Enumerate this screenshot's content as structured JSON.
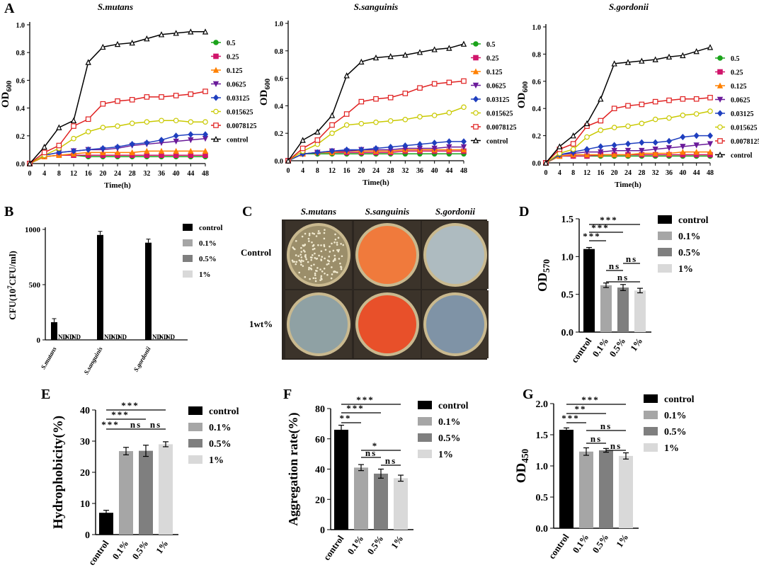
{
  "colors": {
    "control": "#000000",
    "c01": "#a6a6a6",
    "c05": "#7f7f7f",
    "c1": "#d9d9d9"
  },
  "photo_colors": {
    "mutans_control": "#9b8e6a",
    "sang_control": "#f07a3c",
    "gord_control": "#aebbc0",
    "mutans_1wt": "#8fa1a4",
    "sang_1wt": "#e8502a",
    "gord_1wt": "#7f93a6"
  },
  "chart_data": [
    {
      "panel": "A",
      "type": "line",
      "title": "S.mutans",
      "xlabel": "Time(h)",
      "ylabel": "OD",
      "ylabel_sub": "600",
      "x": [
        0,
        4,
        8,
        12,
        16,
        20,
        24,
        28,
        32,
        36,
        40,
        44,
        48
      ],
      "ylim": [
        0,
        1.0
      ],
      "yticks": [
        "0.0",
        "0.2",
        "0.4",
        "0.6",
        "0.8",
        "1.0"
      ],
      "series": [
        {
          "name": "0.5",
          "color": "#1aa31a",
          "marker": "circle",
          "values": [
            0,
            0.05,
            0.06,
            0.06,
            0.05,
            0.05,
            0.05,
            0.05,
            0.05,
            0.05,
            0.05,
            0.05,
            0.05
          ]
        },
        {
          "name": "0.25",
          "color": "#d0156b",
          "marker": "square",
          "values": [
            0,
            0.05,
            0.06,
            0.06,
            0.06,
            0.06,
            0.06,
            0.06,
            0.06,
            0.06,
            0.06,
            0.06,
            0.06
          ]
        },
        {
          "name": "0.125",
          "color": "#ff8000",
          "marker": "triangle",
          "values": [
            0,
            0.05,
            0.06,
            0.07,
            0.08,
            0.08,
            0.08,
            0.08,
            0.09,
            0.09,
            0.09,
            0.09,
            0.09
          ]
        },
        {
          "name": "0.0625",
          "color": "#6a1b9a",
          "marker": "tri-down",
          "values": [
            0,
            0.06,
            0.08,
            0.09,
            0.1,
            0.1,
            0.11,
            0.13,
            0.14,
            0.15,
            0.16,
            0.17,
            0.18
          ]
        },
        {
          "name": "0.03125",
          "color": "#1f3fbf",
          "marker": "diamond",
          "values": [
            0,
            0.06,
            0.08,
            0.09,
            0.1,
            0.11,
            0.12,
            0.14,
            0.15,
            0.17,
            0.2,
            0.21,
            0.21
          ]
        },
        {
          "name": "0.015625",
          "color": "#c9c900",
          "marker": "circle-open",
          "values": [
            0,
            0.06,
            0.11,
            0.18,
            0.23,
            0.26,
            0.27,
            0.29,
            0.3,
            0.31,
            0.31,
            0.3,
            0.3
          ]
        },
        {
          "name": "0.0078125",
          "color": "#e02020",
          "marker": "square-open",
          "values": [
            0,
            0.08,
            0.13,
            0.27,
            0.32,
            0.43,
            0.45,
            0.46,
            0.48,
            0.48,
            0.49,
            0.5,
            0.52
          ]
        },
        {
          "name": "control",
          "color": "#000000",
          "marker": "triangle-open",
          "values": [
            0,
            0.12,
            0.26,
            0.31,
            0.73,
            0.84,
            0.86,
            0.87,
            0.9,
            0.93,
            0.94,
            0.95,
            0.95
          ]
        }
      ]
    },
    {
      "panel": "A",
      "type": "line",
      "title": "S.sanguinis",
      "xlabel": "Time(h)",
      "ylabel": "OD",
      "ylabel_sub": "600",
      "x": [
        0,
        4,
        8,
        12,
        16,
        20,
        24,
        28,
        32,
        36,
        40,
        44,
        48
      ],
      "ylim": [
        0,
        1.0
      ],
      "yticks": [
        "0.0",
        "0.2",
        "0.4",
        "0.6",
        "0.8",
        "1.0"
      ],
      "series": [
        {
          "name": "0.5",
          "color": "#1aa31a",
          "marker": "circle",
          "values": [
            0,
            0.05,
            0.05,
            0.05,
            0.05,
            0.05,
            0.05,
            0.05,
            0.05,
            0.05,
            0.05,
            0.05,
            0.05
          ]
        },
        {
          "name": "0.25",
          "color": "#d0156b",
          "marker": "square",
          "values": [
            0,
            0.05,
            0.06,
            0.06,
            0.06,
            0.06,
            0.06,
            0.06,
            0.07,
            0.07,
            0.07,
            0.07,
            0.07
          ]
        },
        {
          "name": "0.125",
          "color": "#ff8000",
          "marker": "triangle",
          "values": [
            0,
            0.05,
            0.06,
            0.06,
            0.07,
            0.07,
            0.07,
            0.07,
            0.08,
            0.08,
            0.08,
            0.08,
            0.08
          ]
        },
        {
          "name": "0.0625",
          "color": "#6a1b9a",
          "marker": "tri-down",
          "values": [
            0,
            0.05,
            0.06,
            0.07,
            0.07,
            0.08,
            0.08,
            0.08,
            0.09,
            0.09,
            0.09,
            0.1,
            0.1
          ]
        },
        {
          "name": "0.03125",
          "color": "#1f3fbf",
          "marker": "diamond",
          "values": [
            0,
            0.05,
            0.06,
            0.07,
            0.08,
            0.08,
            0.09,
            0.1,
            0.11,
            0.12,
            0.13,
            0.14,
            0.14
          ]
        },
        {
          "name": "0.015625",
          "color": "#c9c900",
          "marker": "circle-open",
          "values": [
            0,
            0.07,
            0.12,
            0.2,
            0.26,
            0.27,
            0.28,
            0.29,
            0.3,
            0.32,
            0.33,
            0.35,
            0.39
          ]
        },
        {
          "name": "0.0078125",
          "color": "#e02020",
          "marker": "square-open",
          "values": [
            0,
            0.09,
            0.15,
            0.26,
            0.34,
            0.43,
            0.45,
            0.46,
            0.49,
            0.53,
            0.56,
            0.57,
            0.58
          ]
        },
        {
          "name": "control",
          "color": "#000000",
          "marker": "triangle-open",
          "values": [
            0,
            0.15,
            0.21,
            0.33,
            0.62,
            0.72,
            0.75,
            0.76,
            0.77,
            0.79,
            0.81,
            0.82,
            0.85
          ]
        }
      ]
    },
    {
      "panel": "A",
      "type": "line",
      "title": "S.gordonii",
      "xlabel": "Time(h)",
      "ylabel": "OD",
      "ylabel_sub": "600",
      "x": [
        0,
        4,
        8,
        12,
        16,
        20,
        24,
        28,
        32,
        36,
        40,
        44,
        48
      ],
      "ylim": [
        0,
        1.0
      ],
      "yticks": [
        "0.0",
        "0.2",
        "0.4",
        "0.6",
        "0.8",
        "1.0"
      ],
      "series": [
        {
          "name": "0.5",
          "color": "#1aa31a",
          "marker": "circle",
          "values": [
            0,
            0.05,
            0.05,
            0.05,
            0.05,
            0.05,
            0.05,
            0.05,
            0.05,
            0.05,
            0.05,
            0.05,
            0.05
          ]
        },
        {
          "name": "0.25",
          "color": "#d0156b",
          "marker": "square",
          "values": [
            0,
            0.05,
            0.05,
            0.05,
            0.06,
            0.06,
            0.06,
            0.06,
            0.06,
            0.06,
            0.06,
            0.06,
            0.06
          ]
        },
        {
          "name": "0.125",
          "color": "#ff8000",
          "marker": "triangle",
          "values": [
            0,
            0.05,
            0.06,
            0.06,
            0.06,
            0.06,
            0.06,
            0.07,
            0.07,
            0.07,
            0.08,
            0.08,
            0.08
          ]
        },
        {
          "name": "0.0625",
          "color": "#6a1b9a",
          "marker": "tri-down",
          "values": [
            0,
            0.06,
            0.07,
            0.08,
            0.08,
            0.09,
            0.09,
            0.09,
            0.1,
            0.11,
            0.12,
            0.13,
            0.14
          ]
        },
        {
          "name": "0.03125",
          "color": "#1f3fbf",
          "marker": "diamond",
          "values": [
            0,
            0.06,
            0.08,
            0.1,
            0.12,
            0.13,
            0.14,
            0.15,
            0.15,
            0.16,
            0.19,
            0.2,
            0.2
          ]
        },
        {
          "name": "0.015625",
          "color": "#c9c900",
          "marker": "circle-open",
          "values": [
            0,
            0.07,
            0.1,
            0.19,
            0.24,
            0.26,
            0.27,
            0.29,
            0.32,
            0.33,
            0.35,
            0.36,
            0.38
          ]
        },
        {
          "name": "0.0078125",
          "color": "#e02020",
          "marker": "square-open",
          "values": [
            0,
            0.1,
            0.14,
            0.27,
            0.31,
            0.4,
            0.42,
            0.43,
            0.45,
            0.46,
            0.47,
            0.47,
            0.48
          ]
        },
        {
          "name": "control",
          "color": "#000000",
          "marker": "triangle-open",
          "values": [
            0,
            0.12,
            0.2,
            0.29,
            0.47,
            0.73,
            0.74,
            0.75,
            0.76,
            0.78,
            0.79,
            0.82,
            0.85
          ]
        }
      ]
    },
    {
      "panel": "B",
      "type": "bar",
      "ylabel_pre": "CFU(10",
      "ylabel_sup": "7",
      "ylabel_post": "CFU/ml)",
      "categories": [
        "S.mutans",
        "S.sanguinis",
        "S.gordonii"
      ],
      "ylim": [
        0,
        1000
      ],
      "yticks": [
        "0",
        "500",
        "1000"
      ],
      "series": [
        {
          "name": "control",
          "values": [
            160,
            950,
            880
          ]
        },
        {
          "name": "0.1%",
          "values": [
            0,
            0,
            0
          ]
        },
        {
          "name": "0.5%",
          "values": [
            0,
            0,
            0
          ]
        },
        {
          "name": "1%",
          "values": [
            0,
            0,
            0
          ]
        }
      ],
      "nd_label": "ND"
    },
    {
      "panel": "D",
      "type": "bar",
      "ylabel": "OD",
      "ylabel_sub": "570",
      "categories": [
        "control",
        "0.1%",
        "0.5%",
        "1%"
      ],
      "values": [
        1.1,
        0.62,
        0.59,
        0.55
      ],
      "errors": [
        0.02,
        0.03,
        0.04,
        0.03
      ],
      "ylim": [
        0,
        1.5
      ],
      "yticks": [
        "0.0",
        "0.5",
        "1.0",
        "1.5"
      ],
      "legend": [
        "control",
        "0.1%",
        "0.5%",
        "1%"
      ],
      "sig": [
        "***",
        "***",
        "***",
        "ns",
        "ns",
        "ns"
      ]
    },
    {
      "panel": "E",
      "type": "bar",
      "ylabel": "Hydrophobicity(%)",
      "categories": [
        "control",
        "0.1%",
        "0.5%",
        "1%"
      ],
      "values": [
        7,
        26.8,
        26.9,
        29
      ],
      "errors": [
        0.8,
        1.2,
        1.8,
        0.8
      ],
      "ylim": [
        0,
        40
      ],
      "yticks": [
        "0",
        "10",
        "20",
        "30",
        "40"
      ],
      "legend": [
        "control",
        "0.1%",
        "0.5%",
        "1%"
      ],
      "sig": [
        "***",
        "***",
        "***",
        "ns",
        "ns"
      ]
    },
    {
      "panel": "F",
      "type": "bar",
      "ylabel": "Aggregation rate(%)",
      "categories": [
        "control",
        "0.1%",
        "0.5%",
        "1%"
      ],
      "values": [
        66,
        41,
        37,
        34
      ],
      "errors": [
        3,
        2,
        3,
        2
      ],
      "ylim": [
        0,
        80
      ],
      "yticks": [
        "0",
        "20",
        "40",
        "60",
        "80"
      ],
      "legend": [
        "control",
        "0.1%",
        "0.5%",
        "1%"
      ],
      "sig": [
        "***",
        "***",
        "**",
        "*",
        "ns",
        "ns"
      ]
    },
    {
      "panel": "G",
      "type": "bar",
      "ylabel": "OD",
      "ylabel_sub": "450",
      "categories": [
        "control",
        "0.1%",
        "0.5%",
        "1%"
      ],
      "values": [
        1.58,
        1.23,
        1.25,
        1.16
      ],
      "errors": [
        0.03,
        0.06,
        0.03,
        0.05
      ],
      "ylim": [
        0,
        2.0
      ],
      "yticks": [
        "0.0",
        "0.5",
        "1.0",
        "1.5",
        "2.0"
      ],
      "legend": [
        "control",
        "0.1%",
        "0.5%",
        "1%"
      ],
      "sig": [
        "***",
        "**",
        "***",
        "ns",
        "ns",
        "ns"
      ]
    }
  ],
  "panel_letters": {
    "A": "A",
    "B": "B",
    "C": "C",
    "D": "D",
    "E": "E",
    "F": "F",
    "G": "G"
  },
  "photo": {
    "species": [
      "S.mutans",
      "S.sanguinis",
      "S.gordonii"
    ],
    "rows": [
      "Control",
      "1wt%"
    ]
  }
}
